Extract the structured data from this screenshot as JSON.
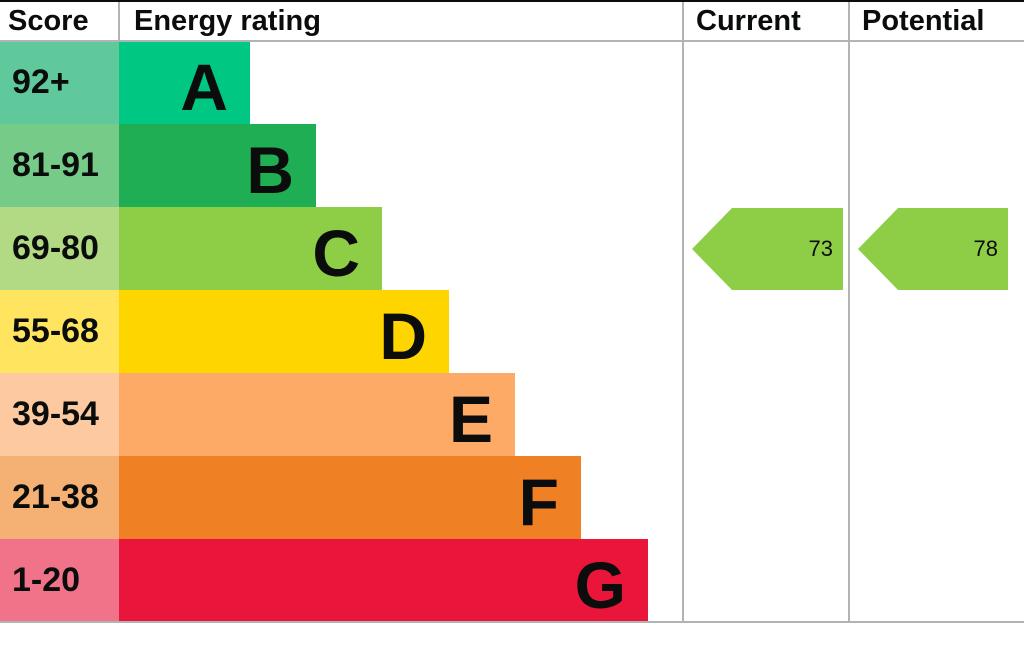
{
  "header": {
    "score": "Score",
    "energy_rating": "Energy rating",
    "current": "Current",
    "potential": "Potential"
  },
  "bands": [
    {
      "letter": "A",
      "score": "92+",
      "color": "#00c781",
      "score_bg": "#5fc99c"
    },
    {
      "letter": "B",
      "score": "81-91",
      "color": "#1fae54",
      "score_bg": "#76cb88"
    },
    {
      "letter": "C",
      "score": "69-80",
      "color": "#8dce46",
      "score_bg": "#b2da85"
    },
    {
      "letter": "D",
      "score": "55-68",
      "color": "#ffd500",
      "score_bg": "#ffe55f"
    },
    {
      "letter": "E",
      "score": "39-54",
      "color": "#fcaa65",
      "score_bg": "#fdc9a0"
    },
    {
      "letter": "F",
      "score": "21-38",
      "color": "#ef8023",
      "score_bg": "#f4b173"
    },
    {
      "letter": "G",
      "score": "1-20",
      "color": "#e9153b",
      "score_bg": "#f1738a"
    }
  ],
  "current": {
    "value": "73",
    "band": "C",
    "color": "#8dce46"
  },
  "potential": {
    "value": "78",
    "band": "C",
    "color": "#8dce46"
  },
  "chart_data": {
    "type": "bar",
    "title": "Energy rating",
    "columns": [
      "Score",
      "Energy rating",
      "Current",
      "Potential"
    ],
    "categories": [
      "A",
      "B",
      "C",
      "D",
      "E",
      "F",
      "G"
    ],
    "score_ranges": [
      "92+",
      "81-91",
      "69-80",
      "55-68",
      "39-54",
      "21-38",
      "1-20"
    ],
    "bar_lengths_steps": [
      1,
      2,
      3,
      4,
      5,
      6,
      7
    ],
    "band_colors": [
      "#00c781",
      "#1fae54",
      "#8dce46",
      "#ffd500",
      "#fcaa65",
      "#ef8023",
      "#e9153b"
    ],
    "markers": [
      {
        "label": "Current",
        "value": 73,
        "band": "C",
        "color": "#8dce46"
      },
      {
        "label": "Potential",
        "value": 78,
        "band": "C",
        "color": "#8dce46"
      }
    ],
    "legend_position": "none",
    "grid": false
  }
}
